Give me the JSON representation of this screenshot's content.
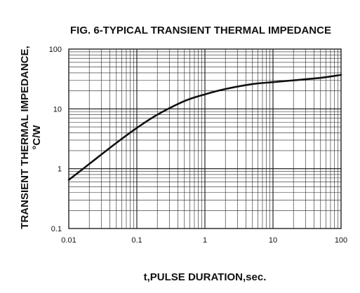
{
  "chart_data": {
    "type": "line",
    "title": "FIG. 6-TYPICAL TRANSIENT THERMAL IMPEDANCE",
    "xlabel": "t,PULSE DURATION,sec.",
    "ylabel_line1": "TRANSIENT THERMAL IMPEDANCE,",
    "ylabel_line2": "°C/W",
    "xscale": "log",
    "yscale": "log",
    "xlim": [
      0.01,
      100
    ],
    "ylim": [
      0.1,
      100
    ],
    "grid": true,
    "x_ticks": [
      "0.01",
      "0.1",
      "1",
      "10",
      "100"
    ],
    "y_ticks": [
      "100",
      "10",
      "1",
      "0.1"
    ],
    "series": [
      {
        "x": [
          0.01,
          0.02,
          0.05,
          0.1,
          0.2,
          0.5,
          1,
          2,
          5,
          10,
          20,
          50,
          100
        ],
        "y": [
          0.65,
          1.2,
          2.7,
          4.8,
          8.0,
          13.5,
          17.5,
          21.5,
          26.0,
          28.0,
          30.0,
          33.0,
          37.0
        ]
      }
    ]
  }
}
